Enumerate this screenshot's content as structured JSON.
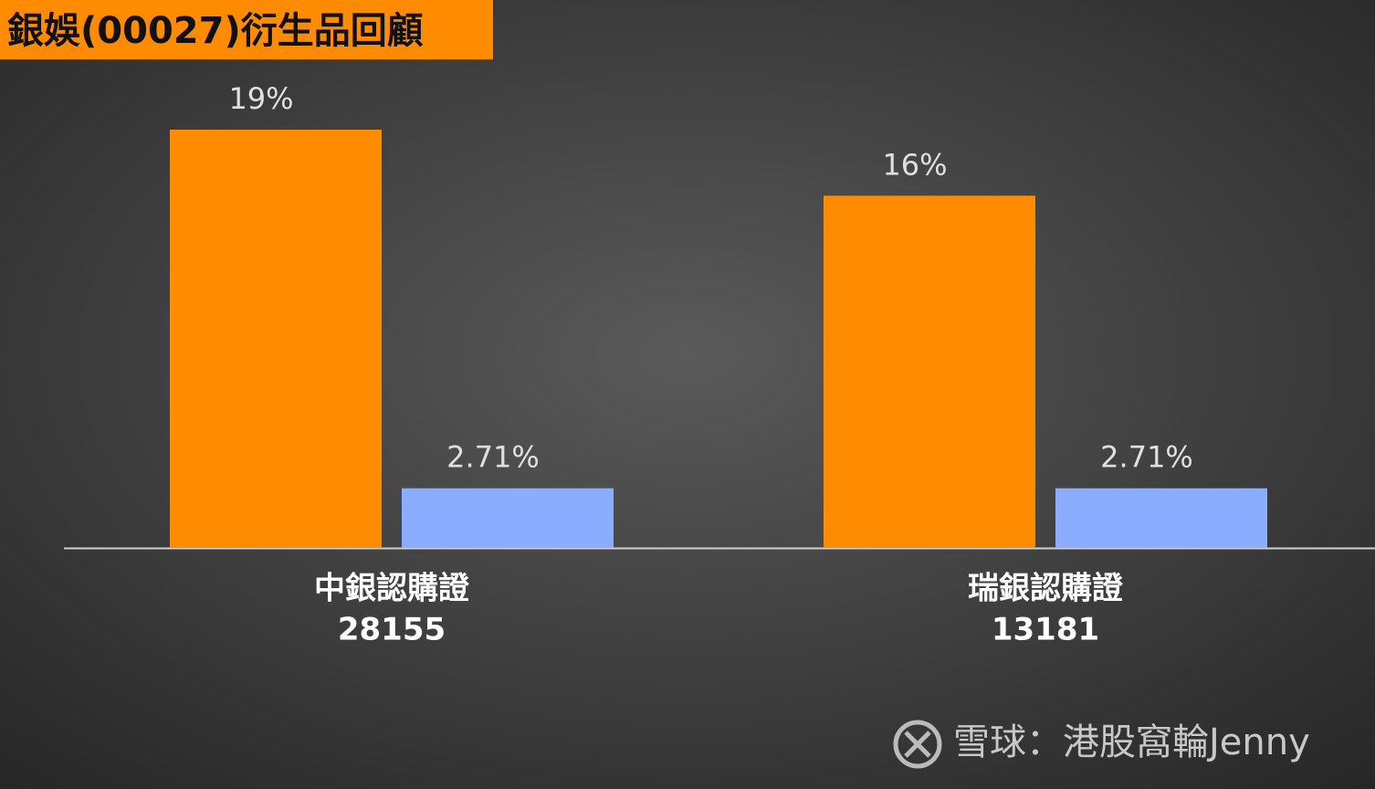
{
  "chart_data": {
    "type": "bar",
    "title": "銀娛(00027)衍生品回顧",
    "categories": [
      [
        "中銀認購證",
        "28155"
      ],
      [
        "瑞銀認購證",
        "13181"
      ]
    ],
    "series": [
      {
        "color": "#ff8c00",
        "values": [
          19,
          16
        ],
        "value_labels": [
          "19%",
          "16%"
        ]
      },
      {
        "color": "#8aadff",
        "values": [
          2.71,
          2.71
        ],
        "value_labels": [
          "2.71%",
          "2.71%"
        ]
      }
    ],
    "watermark": "雪球：港股窩輪Jenny"
  }
}
